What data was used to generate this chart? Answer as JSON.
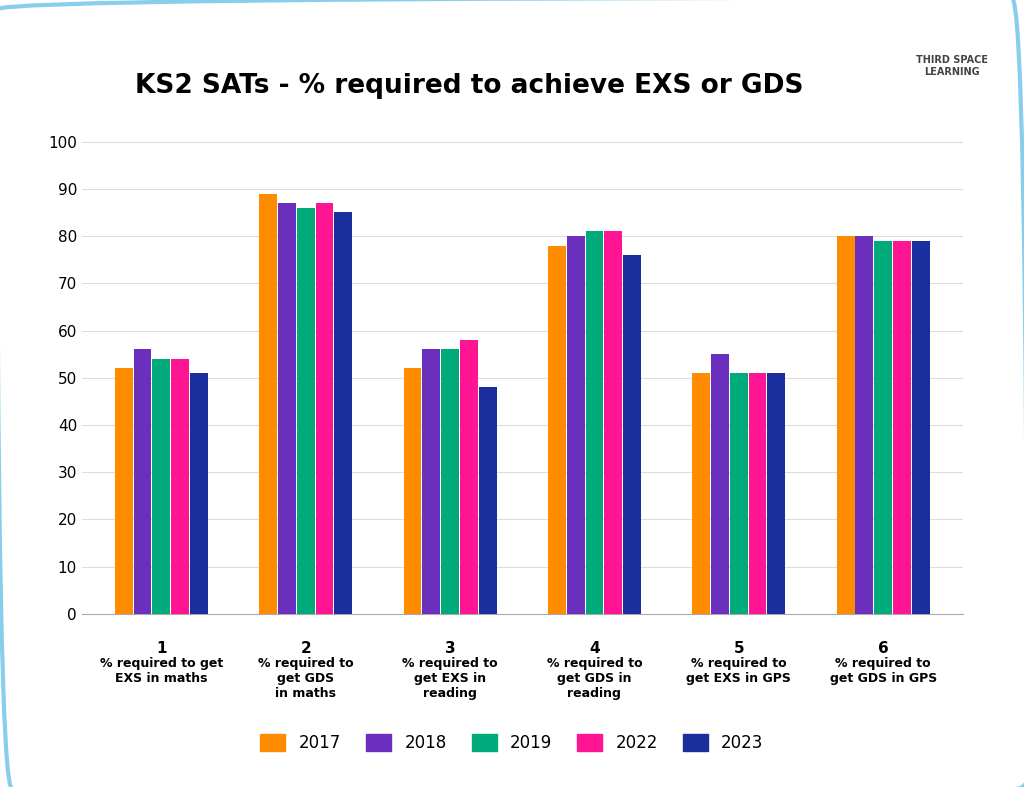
{
  "title": "KS2 SATs - % required to achieve EXS or GDS",
  "categories_line1": [
    "1",
    "2",
    "3",
    "4",
    "5",
    "6"
  ],
  "categories_line2": [
    "% required to get\nEXS in maths",
    "% required to\nget GDS\nin maths",
    "% required to\nget EXS in\nreading",
    "% required to\nget GDS in\nreading",
    "% required to\nget EXS in GPS",
    "% required to\nget GDS in GPS"
  ],
  "years": [
    "2017",
    "2018",
    "2019",
    "2022",
    "2023"
  ],
  "colors": [
    "#FF8C00",
    "#6B2FBE",
    "#00AA7A",
    "#FF1493",
    "#1A2E9E"
  ],
  "values": {
    "2017": [
      52,
      89,
      52,
      78,
      51,
      80
    ],
    "2018": [
      56,
      87,
      56,
      80,
      55,
      80
    ],
    "2019": [
      54,
      86,
      56,
      81,
      51,
      79
    ],
    "2022": [
      54,
      87,
      58,
      81,
      51,
      79
    ],
    "2023": [
      51,
      85,
      48,
      76,
      51,
      79
    ]
  },
  "ylim": [
    0,
    105
  ],
  "yticks": [
    0,
    10,
    20,
    30,
    40,
    50,
    60,
    70,
    80,
    90,
    100
  ],
  "background_color": "#FFFFFF",
  "border_color": "#87CEEB",
  "grid_color": "#DDDDDD",
  "title_fontsize": 19,
  "tick_fontsize": 11,
  "label_fontsize": 10
}
